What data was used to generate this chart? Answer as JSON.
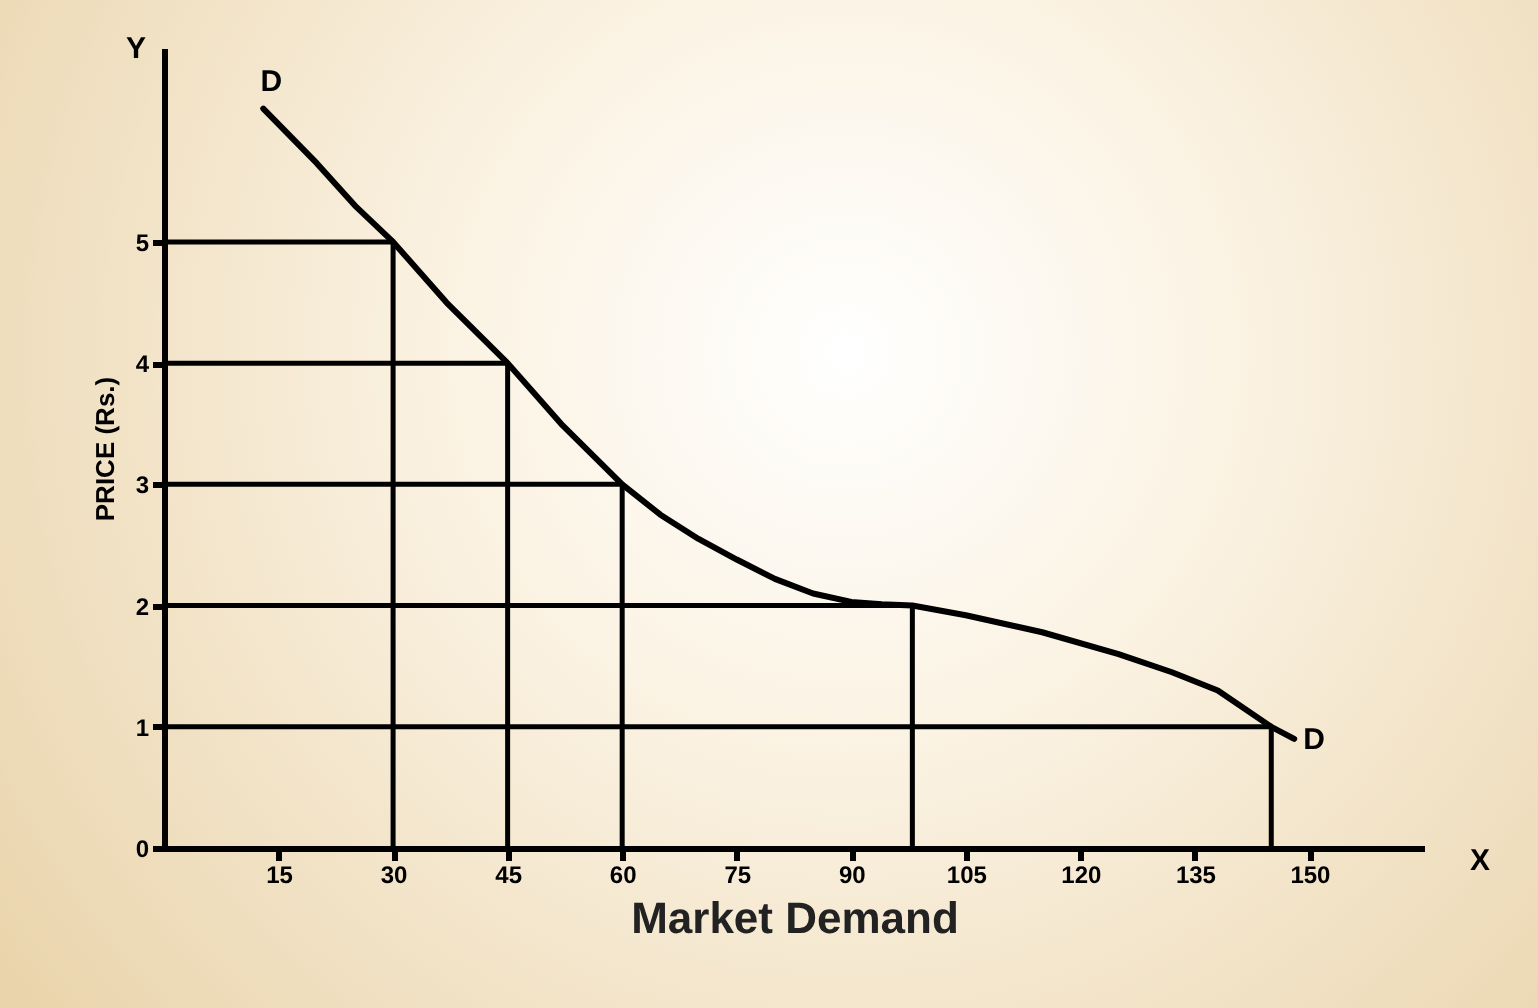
{
  "chart_data": {
    "type": "line",
    "xlabel": "Market Demand",
    "ylabel": "PRICE (Rs.)",
    "xlim": [
      0,
      165
    ],
    "ylim": [
      0,
      6.6
    ],
    "xticks": [
      15,
      30,
      45,
      60,
      75,
      90,
      105,
      120,
      135,
      150
    ],
    "yticks": [
      0,
      1,
      2,
      3,
      4,
      5
    ],
    "grid": false,
    "marker": "none",
    "line_style": "solid",
    "series": [
      {
        "color": "#000000",
        "x": [
          13,
          20,
          25,
          30,
          37,
          45,
          52,
          60,
          65,
          70,
          75,
          80,
          85,
          90,
          94,
          98,
          105,
          115,
          125,
          132,
          138,
          145,
          148
        ],
        "values": [
          6.1,
          5.65,
          5.3,
          5,
          4.5,
          4,
          3.5,
          3,
          2.75,
          2.55,
          2.38,
          2.22,
          2.1,
          2.03,
          2.01,
          2,
          1.92,
          1.78,
          1.6,
          1.45,
          1.3,
          1,
          0.9
        ]
      },
      {
        "color": "#000000",
        "x": [
          0,
          30,
          30
        ],
        "values": [
          5,
          5,
          0
        ]
      },
      {
        "color": "#000000",
        "x": [
          0,
          45,
          45
        ],
        "values": [
          4,
          4,
          0
        ]
      },
      {
        "color": "#000000",
        "x": [
          0,
          60,
          60
        ],
        "values": [
          3,
          3,
          0
        ]
      },
      {
        "color": "#000000",
        "x": [
          0,
          98,
          98
        ],
        "values": [
          2,
          2,
          0
        ]
      },
      {
        "color": "#000000",
        "x": [
          0,
          145,
          145
        ],
        "values": [
          1,
          1,
          0
        ]
      }
    ],
    "annotations": [
      "D",
      "D",
      "X",
      "Y"
    ]
  }
}
